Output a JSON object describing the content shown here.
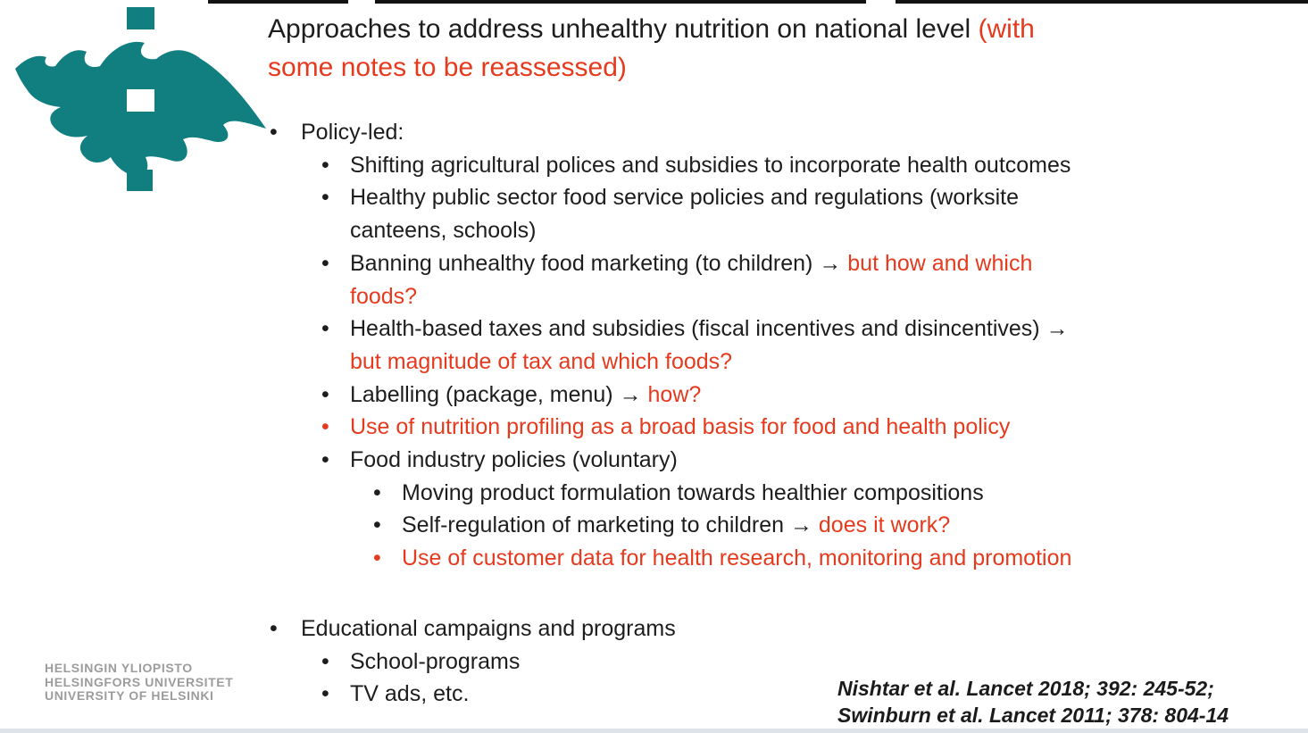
{
  "slide": {
    "colors": {
      "accent_teal": "#117f80",
      "accent_red": "#e53a1e",
      "text_black": "#1d1d1d",
      "wordmark_gray": "#9c9c9c"
    },
    "title": {
      "text_black": "Approaches to address unhealthy nutrition on national level ",
      "text_red": "(with\nsome notes to be reassessed)"
    },
    "list": {
      "items": [
        {
          "level": 1,
          "bullet": "black",
          "parts": [
            {
              "text": "Policy-led:",
              "color": "black"
            }
          ]
        },
        {
          "level": 2,
          "bullet": "black",
          "parts": [
            {
              "text": "Shifting agricultural polices and subsidies to incorporate health outcomes",
              "color": "black"
            }
          ]
        },
        {
          "level": 2,
          "bullet": "black",
          "parts": [
            {
              "text": "Healthy public sector food service policies and regulations (worksite\ncanteens, schools)",
              "color": "black"
            }
          ]
        },
        {
          "level": 2,
          "bullet": "black",
          "parts": [
            {
              "text": "Banning unhealthy food marketing (to children) → ",
              "color": "black"
            },
            {
              "text": "but how and which\nfoods?",
              "color": "red"
            }
          ]
        },
        {
          "level": 2,
          "bullet": "black",
          "parts": [
            {
              "text": "Health-based taxes and subsidies (fiscal incentives and disincentives) → ",
              "color": "black"
            },
            {
              "text": "\nbut magnitude of tax and which foods?",
              "color": "red"
            }
          ]
        },
        {
          "level": 2,
          "bullet": "black",
          "parts": [
            {
              "text": "Labelling (package, menu) → ",
              "color": "black"
            },
            {
              "text": "how?",
              "color": "red"
            }
          ]
        },
        {
          "level": 2,
          "bullet": "red",
          "parts": [
            {
              "text": "Use of nutrition profiling as a broad basis for food and health policy",
              "color": "red"
            }
          ]
        },
        {
          "level": 2,
          "bullet": "black",
          "parts": [
            {
              "text": "Food industry policies (voluntary)",
              "color": "black"
            }
          ]
        },
        {
          "level": 3,
          "bullet": "black",
          "parts": [
            {
              "text": "Moving product formulation towards healthier compositions",
              "color": "black"
            }
          ]
        },
        {
          "level": 3,
          "bullet": "black",
          "parts": [
            {
              "text": "Self-regulation of marketing to children → ",
              "color": "black"
            },
            {
              "text": "does it work?",
              "color": "red"
            }
          ]
        },
        {
          "level": 3,
          "bullet": "red",
          "parts": [
            {
              "text": "Use of customer data for health research, monitoring and promotion",
              "color": "red"
            }
          ]
        },
        {
          "level": 1,
          "bullet": "black",
          "gap_before": true,
          "parts": [
            {
              "text": "Educational campaigns and programs",
              "color": "black"
            }
          ]
        },
        {
          "level": 2,
          "bullet": "black",
          "parts": [
            {
              "text": "School-programs",
              "color": "black"
            }
          ]
        },
        {
          "level": 2,
          "bullet": "black",
          "parts": [
            {
              "text": "TV ads, etc.",
              "color": "black"
            }
          ]
        }
      ]
    },
    "citation": {
      "line1": "Nishtar et al. Lancet 2018; 392: 245-52;",
      "line2": "Swinburn et al. Lancet 2011; 378: 804-14"
    },
    "logo": {
      "icon": "university-of-helsinki-flame-icon",
      "wordmark": [
        "HELSINGIN YLIOPISTO",
        "HELSINGFORS UNIVERSITET",
        "UNIVERSITY OF HELSINKI"
      ]
    }
  }
}
